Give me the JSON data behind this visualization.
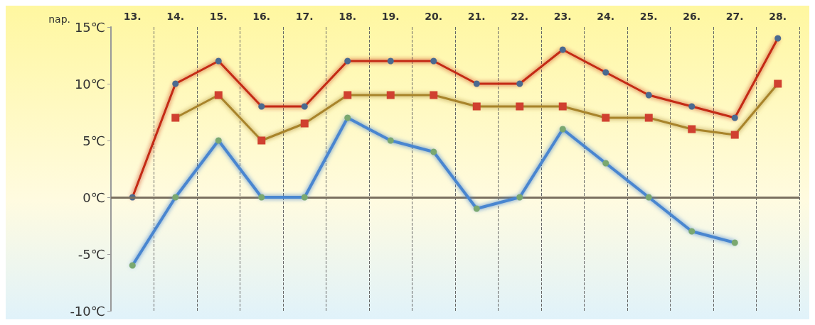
{
  "chart_data": {
    "type": "line",
    "xlabel": "nap.",
    "categories": [
      "13.",
      "14.",
      "15.",
      "16.",
      "17.",
      "18.",
      "19.",
      "20.",
      "21.",
      "22.",
      "23.",
      "24.",
      "25.",
      "26.",
      "27.",
      "28."
    ],
    "series": [
      {
        "color": "#c42a12",
        "marker": "circle",
        "values": [
          0,
          10,
          12,
          8,
          8,
          12,
          12,
          12,
          10,
          10,
          13,
          11,
          9,
          8,
          7,
          14
        ]
      },
      {
        "color": "#a8842c",
        "marker": "square",
        "values": [
          null,
          7,
          9,
          5,
          6.5,
          9,
          9,
          9,
          8,
          8,
          8,
          7,
          7,
          6,
          5.5,
          10
        ]
      },
      {
        "color": "#4a86d0",
        "marker": "circle",
        "values": [
          -6,
          0,
          5,
          0,
          0,
          7,
          5,
          4,
          -1,
          0,
          6,
          3,
          0,
          -3,
          -4,
          null
        ]
      }
    ],
    "ylim": [
      -10,
      15
    ],
    "yticks": [
      {
        "value": -10,
        "label": "-10℃"
      },
      {
        "value": -5,
        "label": "-5℃"
      },
      {
        "value": 0,
        "label": "0℃"
      },
      {
        "value": 5,
        "label": "5℃"
      },
      {
        "value": 10,
        "label": "10℃"
      },
      {
        "value": 15,
        "label": "15℃"
      }
    ],
    "ref_lines": [
      {
        "axis": "y",
        "value": 0,
        "color": "#7a7060"
      }
    ],
    "grid": "x",
    "line_style": "solid"
  }
}
